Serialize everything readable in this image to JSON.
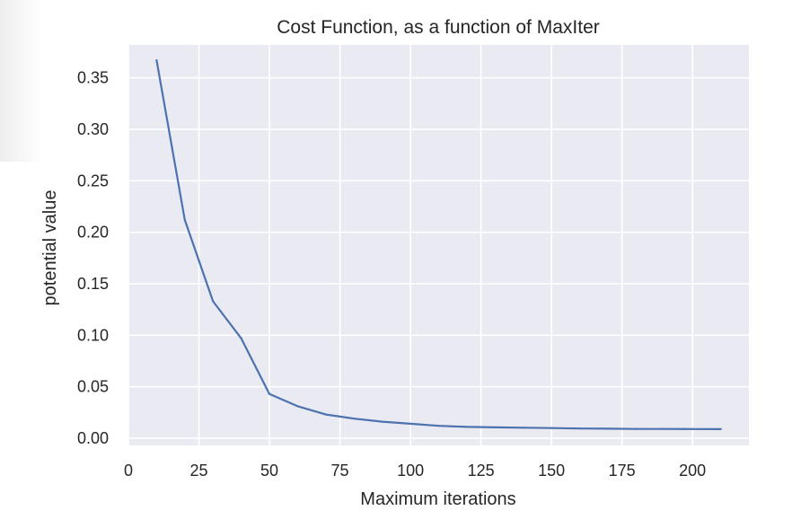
{
  "chart_data": {
    "type": "line",
    "title": "Cost Function, as a function of MaxIter",
    "xlabel": "Maximum iterations",
    "ylabel": "potential value",
    "xlim": [
      0,
      220
    ],
    "ylim": [
      -0.007,
      0.382
    ],
    "xticks": [
      0,
      25,
      50,
      75,
      100,
      125,
      150,
      175,
      200
    ],
    "xtick_labels": [
      "0",
      "25",
      "50",
      "75",
      "100",
      "125",
      "150",
      "175",
      "200"
    ],
    "yticks": [
      0.0,
      0.05,
      0.1,
      0.15,
      0.2,
      0.25,
      0.3,
      0.35
    ],
    "ytick_labels": [
      "0.00",
      "0.05",
      "0.10",
      "0.15",
      "0.20",
      "0.25",
      "0.30",
      "0.35"
    ],
    "grid": true,
    "series": [
      {
        "color": "#4C72B0",
        "x": [
          10,
          20,
          30,
          40,
          50,
          60,
          70,
          80,
          90,
          100,
          110,
          120,
          130,
          140,
          150,
          160,
          170,
          180,
          190,
          200,
          210
        ],
        "y": [
          0.367,
          0.212,
          0.133,
          0.097,
          0.043,
          0.031,
          0.023,
          0.019,
          0.016,
          0.014,
          0.012,
          0.011,
          0.0105,
          0.0102,
          0.0098,
          0.0094,
          0.0092,
          0.009,
          0.009,
          0.0089,
          0.0088
        ]
      }
    ],
    "colors": {
      "plot_background": "#EAEAF2",
      "grid": "#FFFFFF",
      "text": "#262626"
    }
  }
}
